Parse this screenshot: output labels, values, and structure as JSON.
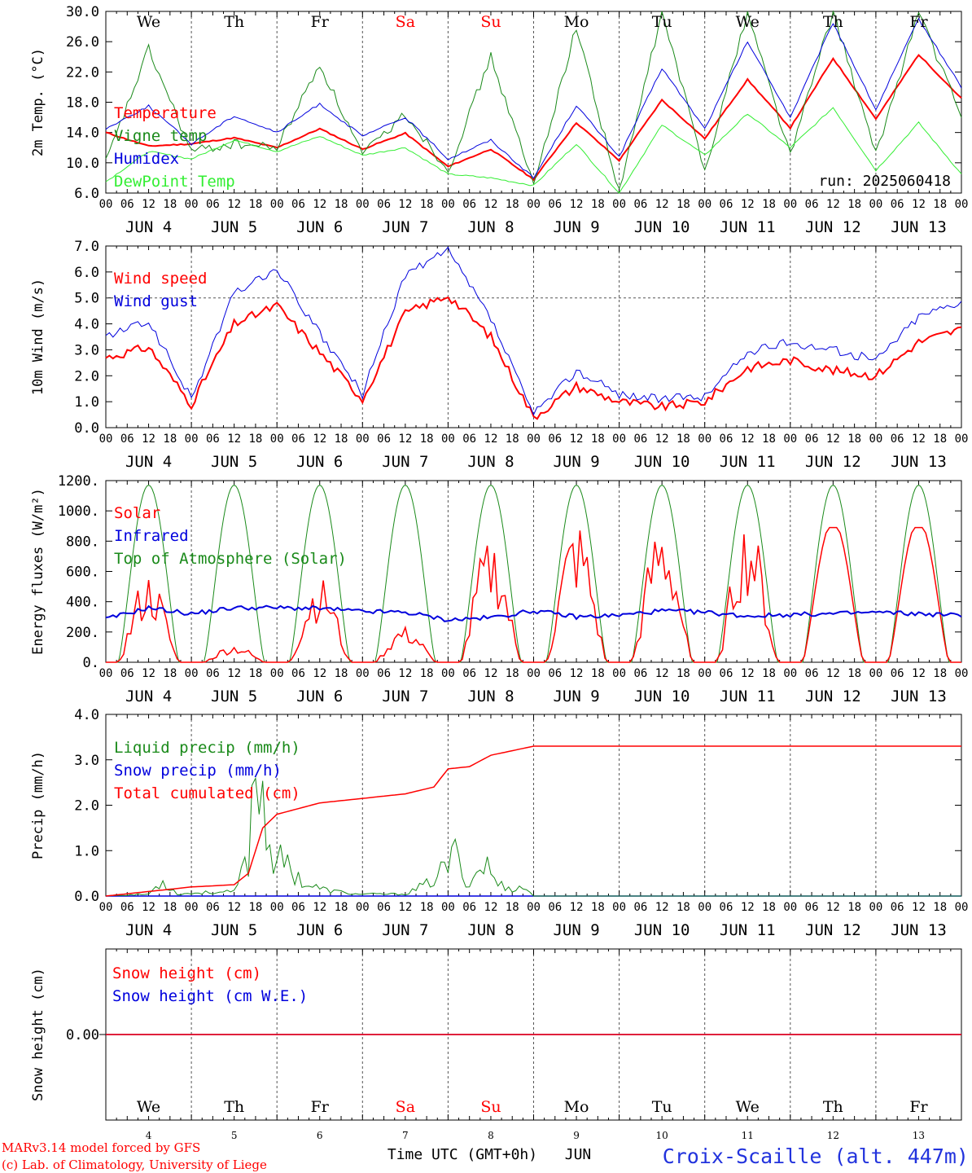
{
  "run_label": "run: 2025060418",
  "footer": {
    "model": "MARv3.14 model forced by GFS",
    "credit": "(c) Lab. of Climatology, University of Liege",
    "xaxis": "Time UTC (GMT+0h)",
    "month": "JUN",
    "station": "Croix-Scaille (alt. 447m)"
  },
  "days": [
    {
      "dow": "We",
      "date": "JUN 4",
      "num": "4",
      "weekend": false
    },
    {
      "dow": "Th",
      "date": "JUN 5",
      "num": "5",
      "weekend": false
    },
    {
      "dow": "Fr",
      "date": "JUN 6",
      "num": "6",
      "weekend": false
    },
    {
      "dow": "Sa",
      "date": "JUN 7",
      "num": "7",
      "weekend": true
    },
    {
      "dow": "Su",
      "date": "JUN 8",
      "num": "8",
      "weekend": true
    },
    {
      "dow": "Mo",
      "date": "JUN 9",
      "num": "9",
      "weekend": false
    },
    {
      "dow": "Tu",
      "date": "JUN 10",
      "num": "10",
      "weekend": false
    },
    {
      "dow": "We",
      "date": "JUN 11",
      "num": "11",
      "weekend": false
    },
    {
      "dow": "Th",
      "date": "JUN 12",
      "num": "12",
      "weekend": false
    },
    {
      "dow": "Fr",
      "date": "JUN 13",
      "num": "13",
      "weekend": false
    }
  ],
  "hour_ticks": [
    "00",
    "06",
    "12",
    "18"
  ],
  "colors": {
    "red": "#ff0000",
    "blue": "#0000dd",
    "green": "#1a8a1a",
    "lightgreen": "#33ee33",
    "weekend": "#ff0000"
  },
  "chart_data": [
    {
      "type": "line",
      "ylabel": "2m Temp. (°C)",
      "ylim": [
        6,
        30
      ],
      "yticks": [
        "6.0",
        "10.0",
        "14.0",
        "18.0",
        "22.0",
        "26.0",
        "30.0"
      ],
      "x_hours": [
        0,
        12,
        24,
        36,
        48,
        60,
        72,
        84,
        96,
        108,
        120,
        132,
        144,
        156,
        168,
        180,
        192,
        204,
        216,
        228,
        240
      ],
      "series": [
        {
          "name": "Temperature",
          "color": "#ff0000",
          "values": [
            14.0,
            12.2,
            12.5,
            13.3,
            12.0,
            14.5,
            11.8,
            13.9,
            9.5,
            11.8,
            7.8,
            15.3,
            10.3,
            18.3,
            13.2,
            21.0,
            14.6,
            23.8,
            15.8,
            24.3,
            18.5
          ]
        },
        {
          "name": "Vigne temp",
          "color": "#1a8a1a",
          "values": [
            10.0,
            25.0,
            11.5,
            12.5,
            12.0,
            23.0,
            11.0,
            16.5,
            9.0,
            24.0,
            7.0,
            28.0,
            6.0,
            30.0,
            9.0,
            30.0,
            11.0,
            30.0,
            11.0,
            30.0,
            16.0
          ]
        },
        {
          "name": "Humidex",
          "color": "#0000dd",
          "values": [
            14.5,
            17.5,
            12.5,
            16.2,
            14.0,
            17.8,
            13.5,
            16.0,
            10.5,
            13.0,
            8.0,
            17.6,
            10.8,
            22.5,
            14.5,
            26.0,
            16.0,
            28.5,
            17.0,
            29.0,
            20.0
          ]
        },
        {
          "name": "DewPoint Temp",
          "color": "#33ee33",
          "values": [
            7.5,
            11.5,
            10.5,
            13.0,
            11.5,
            13.5,
            11.0,
            12.0,
            8.5,
            8.0,
            7.0,
            12.5,
            6.0,
            15.0,
            11.0,
            16.5,
            12.0,
            17.3,
            9.0,
            15.3,
            8.5
          ]
        }
      ]
    },
    {
      "type": "line",
      "ylabel": "10m Wind (m/s)",
      "ylim": [
        0,
        7
      ],
      "yticks": [
        "0.0",
        "1.0",
        "2.0",
        "3.0",
        "4.0",
        "5.0",
        "6.0",
        "7.0"
      ],
      "x_hours": [
        0,
        12,
        24,
        36,
        48,
        60,
        72,
        84,
        96,
        108,
        120,
        132,
        144,
        156,
        168,
        180,
        192,
        204,
        216,
        228,
        240
      ],
      "series": [
        {
          "name": "Wind speed",
          "color": "#ff0000",
          "values": [
            2.7,
            3.1,
            0.9,
            4.0,
            4.7,
            2.9,
            1.1,
            4.4,
            5.1,
            3.5,
            0.4,
            1.6,
            1.0,
            0.8,
            1.0,
            2.3,
            2.6,
            2.2,
            2.0,
            3.3,
            3.8
          ]
        },
        {
          "name": "Wind gust",
          "color": "#0000dd",
          "values": [
            3.5,
            4.1,
            1.1,
            5.2,
            6.1,
            3.6,
            1.3,
            5.9,
            6.8,
            4.2,
            0.5,
            2.2,
            1.3,
            1.1,
            1.2,
            2.9,
            3.3,
            3.0,
            2.6,
            4.3,
            4.9
          ]
        }
      ]
    },
    {
      "type": "line",
      "ylabel": "Energy fluxes (W/m²)",
      "ylim": [
        0,
        1200
      ],
      "yticks": [
        "0.",
        "200.",
        "400.",
        "600.",
        "800.",
        "1000.",
        "1200."
      ],
      "series": [
        {
          "name": "Solar",
          "color": "#ff0000",
          "daily_peak": [
            550,
            110,
            540,
            230,
            770,
            870,
            870,
            880,
            890,
            890
          ]
        },
        {
          "name": "Infrared",
          "color": "#0000dd",
          "values": [
            285,
            360,
            320,
            360,
            360,
            355,
            335,
            330,
            280,
            295,
            340,
            300,
            310,
            340,
            330,
            305,
            315,
            320,
            330,
            320,
            310
          ]
        },
        {
          "name": "Top of Atmosphere (Solar)",
          "color": "#1a8a1a",
          "daily_peak": [
            1170,
            1170,
            1170,
            1170,
            1170,
            1170,
            1170,
            1170,
            1170,
            1170
          ]
        }
      ]
    },
    {
      "type": "line",
      "ylabel": "Precip (mm/h)",
      "ylim": [
        0,
        4
      ],
      "yticks": [
        "0.0",
        "1.0",
        "2.0",
        "3.0",
        "4.0"
      ],
      "series": [
        {
          "name": "Liquid precip (mm/h)",
          "color": "#1a8a1a",
          "points": [
            [
              0,
              0
            ],
            [
              12,
              0.05
            ],
            [
              16,
              0.4
            ],
            [
              20,
              0.05
            ],
            [
              30,
              0.1
            ],
            [
              36,
              0.1
            ],
            [
              40,
              1.0
            ],
            [
              42,
              3.6
            ],
            [
              44,
              2.5
            ],
            [
              47,
              1.0
            ],
            [
              52,
              0.7
            ],
            [
              56,
              0.3
            ],
            [
              62,
              0.15
            ],
            [
              70,
              0.05
            ],
            [
              84,
              0.05
            ],
            [
              90,
              0.3
            ],
            [
              94,
              0.6
            ],
            [
              98,
              1.05
            ],
            [
              102,
              0.3
            ],
            [
              106,
              0.9
            ],
            [
              110,
              0.3
            ],
            [
              114,
              0.2
            ],
            [
              118,
              0.2
            ],
            [
              120,
              0
            ],
            [
              240,
              0
            ]
          ]
        },
        {
          "name": "Snow precip (mm/h)",
          "color": "#0000dd",
          "points": [
            [
              0,
              0
            ],
            [
              240,
              0
            ]
          ]
        },
        {
          "name": "Total cumulated (cm)",
          "color": "#ff0000",
          "points": [
            [
              0,
              0
            ],
            [
              12,
              0.1
            ],
            [
              24,
              0.2
            ],
            [
              36,
              0.25
            ],
            [
              40,
              0.5
            ],
            [
              44,
              1.5
            ],
            [
              48,
              1.8
            ],
            [
              60,
              2.05
            ],
            [
              72,
              2.15
            ],
            [
              84,
              2.25
            ],
            [
              92,
              2.4
            ],
            [
              96,
              2.8
            ],
            [
              102,
              2.85
            ],
            [
              108,
              3.1
            ],
            [
              114,
              3.2
            ],
            [
              120,
              3.3
            ],
            [
              240,
              3.3
            ]
          ]
        }
      ]
    },
    {
      "type": "line",
      "ylabel": "Snow height (cm)",
      "yticks": [
        "0.00"
      ],
      "series": [
        {
          "name": "Snow height (cm)",
          "color": "#ff0000",
          "points": [
            [
              0,
              0
            ],
            [
              240,
              0
            ]
          ]
        },
        {
          "name": "Snow height (cm W.E.)",
          "color": "#0000dd",
          "points": [
            [
              0,
              0
            ],
            [
              240,
              0
            ]
          ]
        }
      ]
    }
  ]
}
